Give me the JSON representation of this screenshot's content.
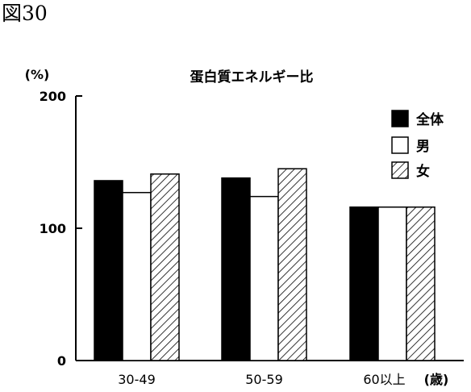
{
  "figure_label": "図30",
  "chart_data": {
    "type": "bar",
    "title": "蛋白質エネルギー比",
    "ylabel": "(%)",
    "xlabel_suffix": "(歳)",
    "ylim": [
      0,
      200
    ],
    "yticks": [
      "0",
      "100",
      "200"
    ],
    "categories": [
      "30-49",
      "50-59",
      "60以上"
    ],
    "series": [
      {
        "name": "全体",
        "values": [
          136,
          138,
          116
        ],
        "fill": "solid"
      },
      {
        "name": "男",
        "values": [
          127,
          124,
          116
        ],
        "fill": "white"
      },
      {
        "name": "女",
        "values": [
          141,
          145,
          116
        ],
        "fill": "hatch"
      }
    ],
    "legend_position": "top-right",
    "grid": false
  }
}
